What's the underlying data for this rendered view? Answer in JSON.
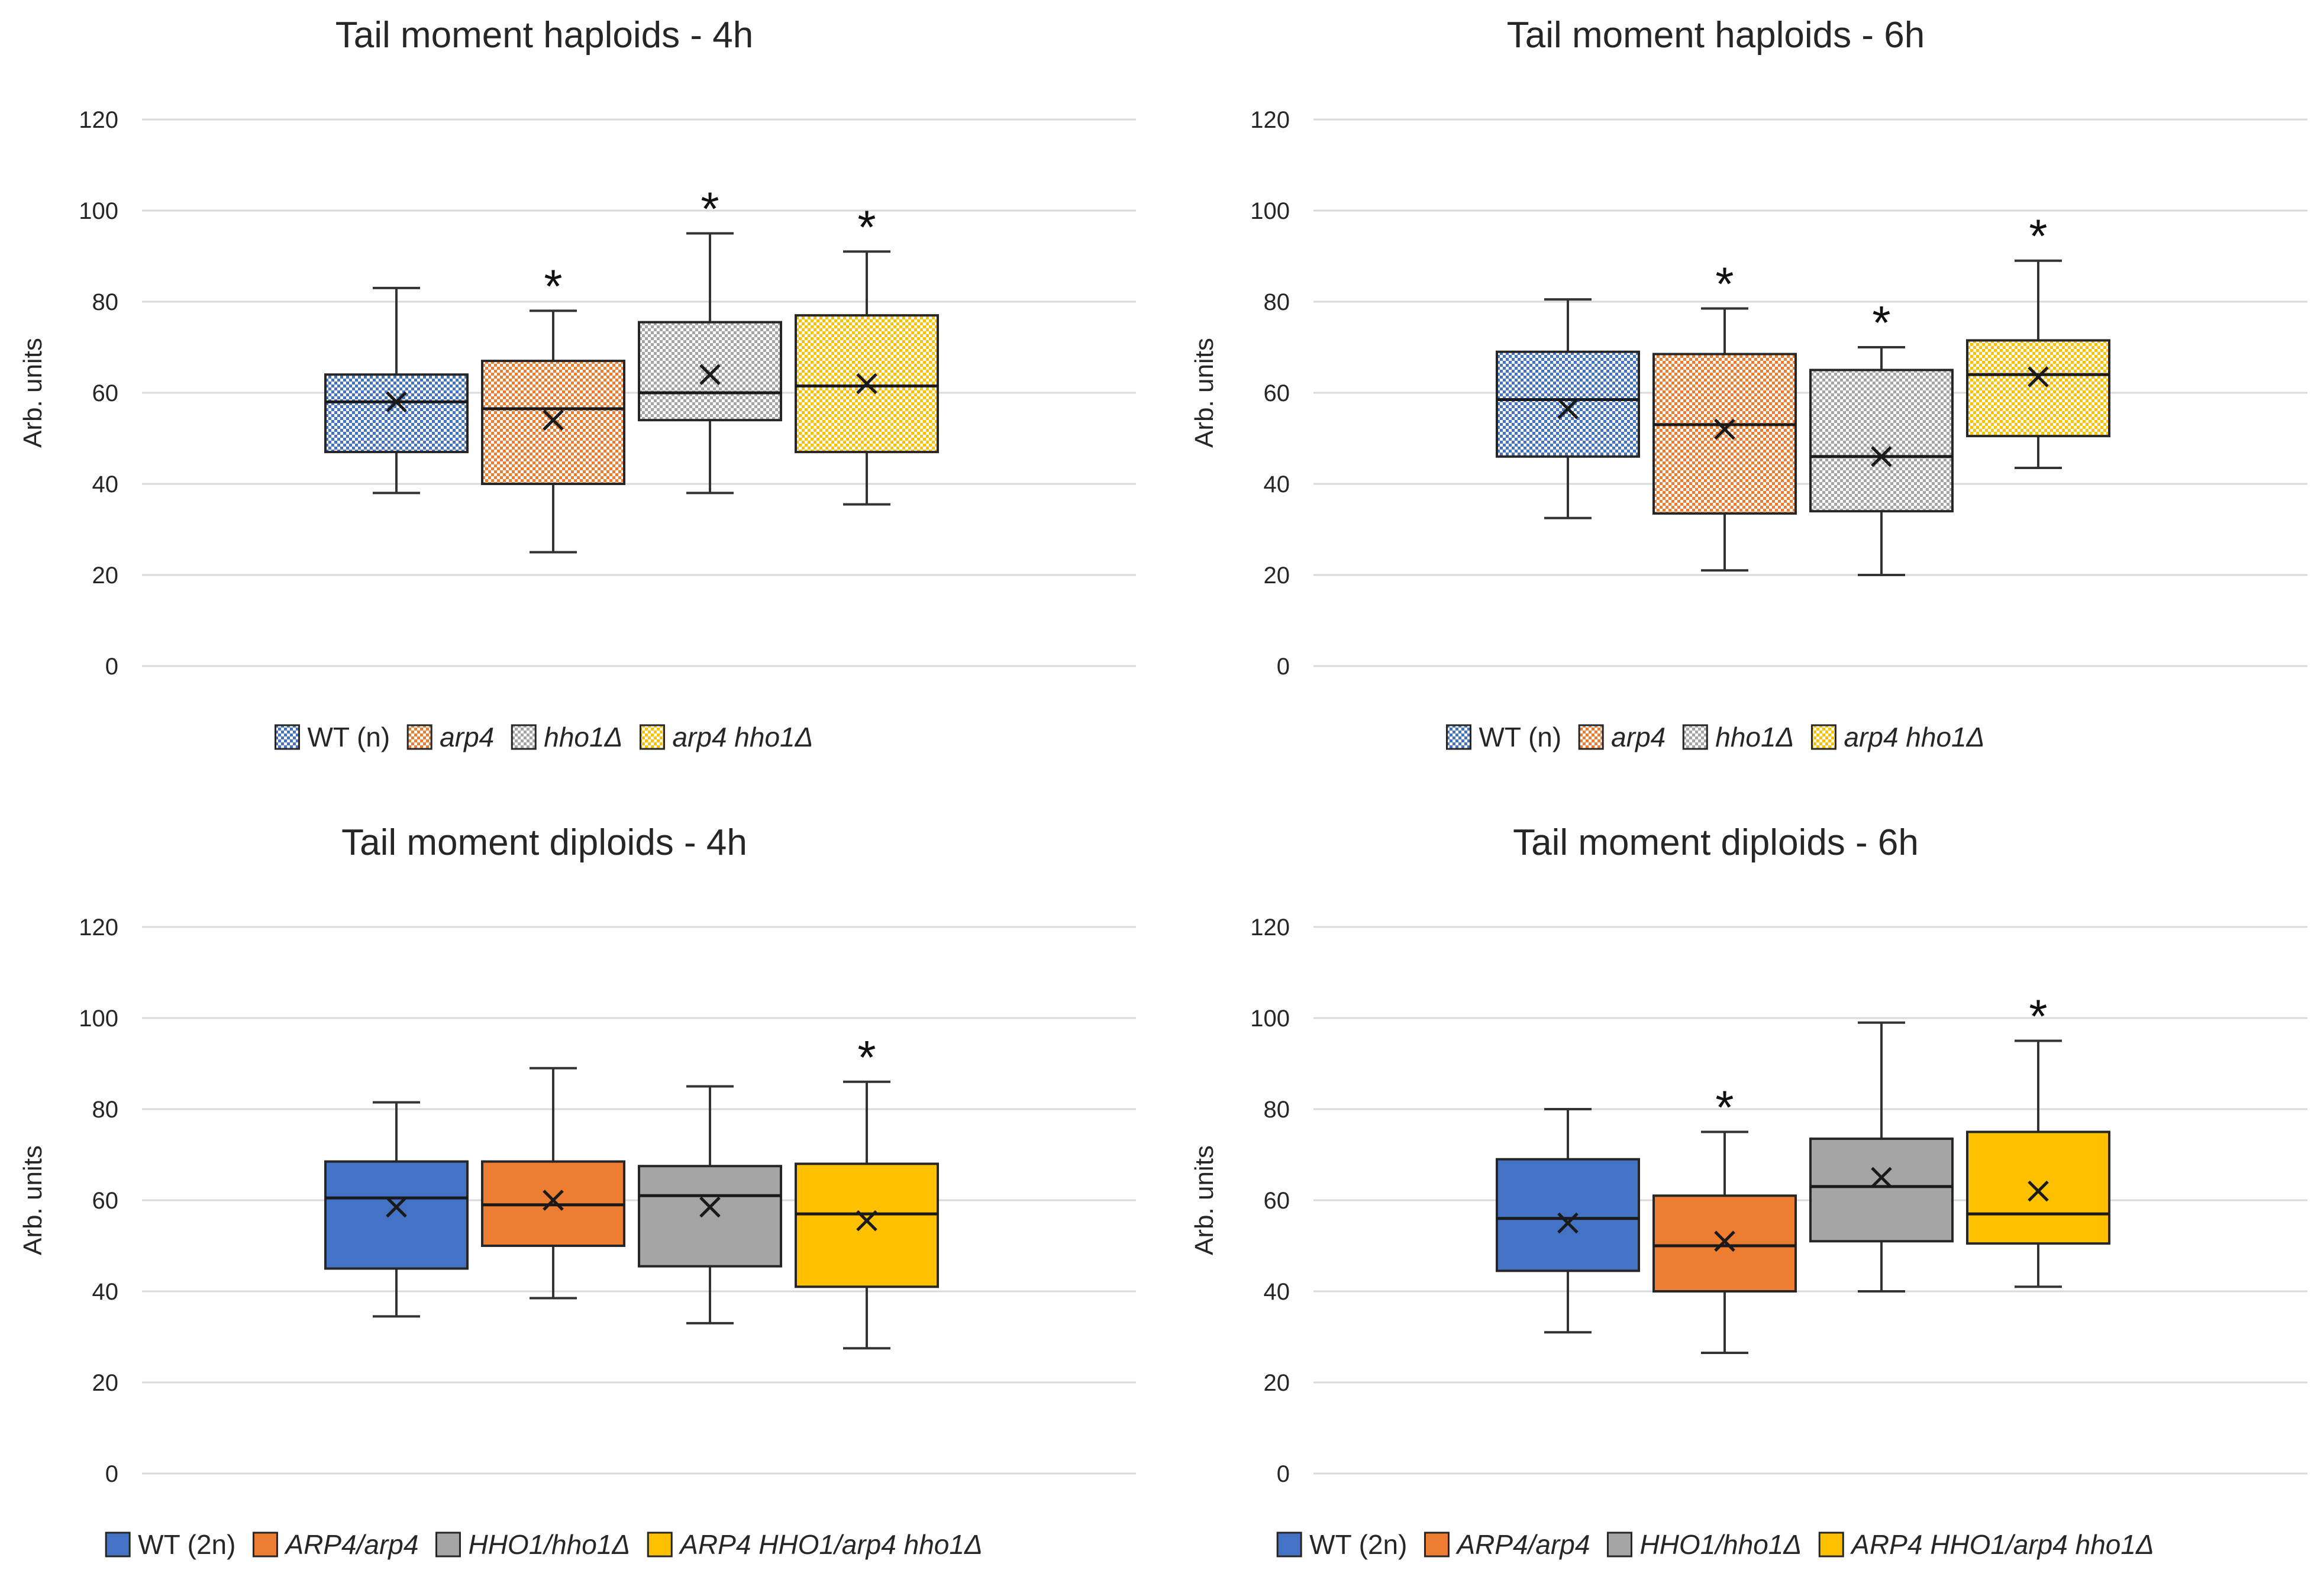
{
  "colors": {
    "wt": "#4472C4",
    "orange": "#ED7D31",
    "gray": "#A5A5A5",
    "yellow": "#FFC000",
    "grid": "#D9D9D9",
    "text": "#262626",
    "whisker": "#333333"
  },
  "chart_data": [
    {
      "id": "haploids-4h",
      "type": "box",
      "title": "Tail moment haploids - 4h",
      "ylabel": "Arb. units",
      "ylim": [
        0,
        120
      ],
      "yticks": [
        "0",
        "20",
        "40",
        "60",
        "80",
        "100",
        "120"
      ],
      "patterned": true,
      "legend_position": "bottom",
      "series": [
        {
          "name": "WT (n)",
          "italic": false,
          "color_key": "wt",
          "min": 38,
          "q1": 47,
          "median": 58,
          "q3": 64,
          "max": 83,
          "mean": 58,
          "sig": ""
        },
        {
          "name": "arp4",
          "italic": true,
          "color_key": "orange",
          "min": 25,
          "q1": 40,
          "median": 56.5,
          "q3": 67,
          "max": 78,
          "mean": 54,
          "sig": "*"
        },
        {
          "name": "hho1Δ",
          "italic": true,
          "color_key": "gray",
          "min": 38,
          "q1": 54,
          "median": 60,
          "q3": 75.5,
          "max": 95,
          "mean": 64,
          "sig": "*"
        },
        {
          "name": "arp4 hho1Δ",
          "italic": true,
          "color_key": "yellow",
          "min": 35.5,
          "q1": 47,
          "median": 61.5,
          "q3": 77,
          "max": 91,
          "mean": 62,
          "sig": "*"
        }
      ]
    },
    {
      "id": "haploids-6h",
      "type": "box",
      "title": "Tail moment haploids - 6h",
      "ylabel": "Arb. units",
      "ylim": [
        0,
        120
      ],
      "yticks": [
        "0",
        "20",
        "40",
        "60",
        "80",
        "100",
        "120"
      ],
      "patterned": true,
      "legend_position": "bottom",
      "series": [
        {
          "name": "WT (n)",
          "italic": false,
          "color_key": "wt",
          "min": 32.5,
          "q1": 46,
          "median": 58.5,
          "q3": 69,
          "max": 80.5,
          "mean": 56.5,
          "sig": ""
        },
        {
          "name": "arp4",
          "italic": true,
          "color_key": "orange",
          "min": 21,
          "q1": 33.5,
          "median": 53,
          "q3": 68.5,
          "max": 78.5,
          "mean": 52,
          "sig": "*"
        },
        {
          "name": "hho1Δ",
          "italic": true,
          "color_key": "gray",
          "min": 20,
          "q1": 34,
          "median": 46,
          "q3": 65,
          "max": 70,
          "mean": 46,
          "sig": "*"
        },
        {
          "name": "arp4 hho1Δ",
          "italic": true,
          "color_key": "yellow",
          "min": 43.5,
          "q1": 50.5,
          "median": 64,
          "q3": 71.5,
          "max": 89,
          "mean": 63.5,
          "sig": "*"
        }
      ]
    },
    {
      "id": "diploids-4h",
      "type": "box",
      "title": "Tail moment diploids - 4h",
      "ylabel": "Arb. units",
      "ylim": [
        0,
        120
      ],
      "yticks": [
        "0",
        "20",
        "40",
        "60",
        "80",
        "100",
        "120"
      ],
      "patterned": false,
      "legend_position": "bottom",
      "series": [
        {
          "name": "WT (2n)",
          "italic": false,
          "color_key": "wt",
          "min": 34.5,
          "q1": 45,
          "median": 60.5,
          "q3": 68.5,
          "max": 81.5,
          "mean": 58.5,
          "sig": ""
        },
        {
          "name": "ARP4/arp4",
          "italic": true,
          "color_key": "orange",
          "min": 38.5,
          "q1": 50,
          "median": 59,
          "q3": 68.5,
          "max": 89,
          "mean": 60,
          "sig": ""
        },
        {
          "name": "HHO1/hho1Δ",
          "italic": true,
          "color_key": "gray",
          "min": 33,
          "q1": 45.5,
          "median": 61,
          "q3": 67.5,
          "max": 85,
          "mean": 58.5,
          "sig": ""
        },
        {
          "name": "ARP4 HHO1/arp4 hho1Δ",
          "italic": true,
          "color_key": "yellow",
          "min": 27.5,
          "q1": 41,
          "median": 57,
          "q3": 68,
          "max": 86,
          "mean": 55.5,
          "sig": "*"
        }
      ]
    },
    {
      "id": "diploids-6h",
      "type": "box",
      "title": "Tail moment diploids - 6h",
      "ylabel": "Arb. units",
      "ylim": [
        0,
        120
      ],
      "yticks": [
        "0",
        "20",
        "40",
        "60",
        "80",
        "100",
        "120"
      ],
      "patterned": false,
      "legend_position": "bottom",
      "series": [
        {
          "name": "WT (2n)",
          "italic": false,
          "color_key": "wt",
          "min": 31,
          "q1": 44.5,
          "median": 56,
          "q3": 69,
          "max": 80,
          "mean": 55,
          "sig": ""
        },
        {
          "name": "ARP4/arp4",
          "italic": true,
          "color_key": "orange",
          "min": 26.5,
          "q1": 40,
          "median": 50,
          "q3": 61,
          "max": 75,
          "mean": 51,
          "sig": "*"
        },
        {
          "name": "HHO1/hho1Δ",
          "italic": true,
          "color_key": "gray",
          "min": 40,
          "q1": 51,
          "median": 63,
          "q3": 73.5,
          "max": 99,
          "mean": 65,
          "sig": ""
        },
        {
          "name": "ARP4 HHO1/arp4 hho1Δ",
          "italic": true,
          "color_key": "yellow",
          "min": 41,
          "q1": 50.5,
          "median": 57,
          "q3": 75,
          "max": 95,
          "mean": 62,
          "sig": "*"
        }
      ]
    }
  ]
}
